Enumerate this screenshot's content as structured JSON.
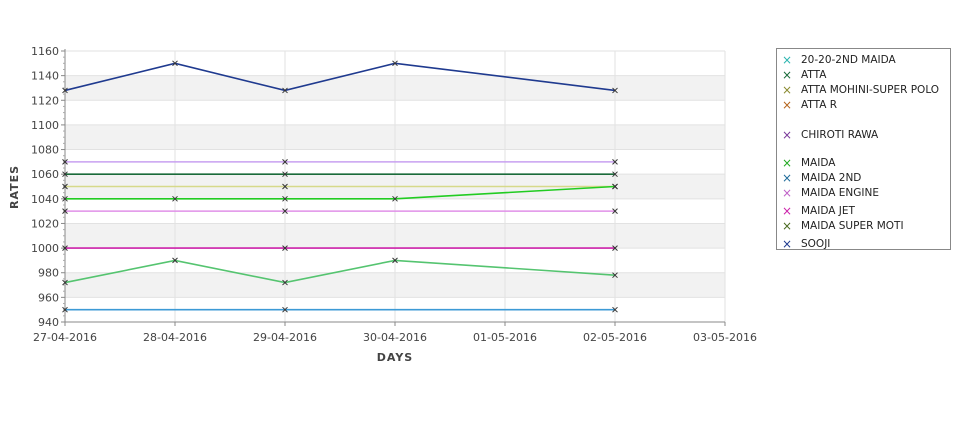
{
  "chart_data": {
    "type": "line",
    "title": "",
    "xlabel": "DAYS",
    "ylabel": "RATES",
    "x_ticks": [
      "27-04-2016",
      "28-04-2016",
      "29-04-2016",
      "30-04-2016",
      "01-05-2016",
      "02-05-2016",
      "03-05-2016"
    ],
    "xlim": [
      "27-04-2016",
      "03-05-2016"
    ],
    "ylim": [
      940,
      1160
    ],
    "y_ticks": [
      940,
      960,
      980,
      1000,
      1020,
      1040,
      1060,
      1080,
      1100,
      1120,
      1140,
      1160
    ],
    "grid": true,
    "legend_position": "right",
    "series": [
      {
        "name": "20-20-2ND MAIDA",
        "color": "#2bb5b0",
        "x": [
          "27-04-2016",
          "28-04-2016",
          "29-04-2016",
          "30-04-2016",
          "02-05-2016"
        ],
        "y": [
          null,
          null,
          null,
          null,
          null
        ]
      },
      {
        "name": "ATTA",
        "color": "#1a6b3a",
        "x": [
          "27-04-2016",
          "29-04-2016",
          "02-05-2016"
        ],
        "y": [
          1060,
          1060,
          1060
        ]
      },
      {
        "name": "ATTA MOHINI-SUPER POLO",
        "color": "#d6d98a",
        "x": [
          "27-04-2016",
          "29-04-2016",
          "02-05-2016"
        ],
        "y": [
          1050,
          1050,
          1050
        ]
      },
      {
        "name": "ATTA R",
        "color": "#b5651d",
        "x": [],
        "y": []
      },
      {
        "name": "CHIROTI RAWA",
        "color": "#c8a0f0",
        "x": [
          "27-04-2016",
          "29-04-2016",
          "02-05-2016"
        ],
        "y": [
          1070,
          1070,
          1070
        ]
      },
      {
        "name": "MAIDA",
        "color": "#22cc22",
        "x": [
          "27-04-2016",
          "28-04-2016",
          "29-04-2016",
          "30-04-2016",
          "02-05-2016"
        ],
        "y": [
          1040,
          1040,
          1040,
          1040,
          1050
        ]
      },
      {
        "name": "MAIDA 2ND",
        "color": "#3c9ad6",
        "x": [
          "27-04-2016",
          "29-04-2016",
          "02-05-2016"
        ],
        "y": [
          950,
          950,
          950
        ]
      },
      {
        "name": "MAIDA ENGINE",
        "color": "#e090e8",
        "x": [
          "27-04-2016",
          "29-04-2016",
          "02-05-2016"
        ],
        "y": [
          1030,
          1030,
          1030
        ]
      },
      {
        "name": "MAIDA JET",
        "color": "#cc22aa",
        "x": [
          "27-04-2016",
          "29-04-2016",
          "02-05-2016"
        ],
        "y": [
          1000,
          1000,
          1000
        ]
      },
      {
        "name": "MAIDA SUPER MOTI",
        "color": "#55c470",
        "x": [
          "27-04-2016",
          "28-04-2016",
          "29-04-2016",
          "30-04-2016",
          "02-05-2016"
        ],
        "y": [
          972,
          990,
          972,
          990,
          978
        ]
      },
      {
        "name": "SOOJI",
        "color": "#1f3a8f",
        "x": [
          "27-04-2016",
          "28-04-2016",
          "29-04-2016",
          "30-04-2016",
          "02-05-2016"
        ],
        "y": [
          1128,
          1150,
          1128,
          1150,
          1128
        ]
      }
    ]
  },
  "legend": [
    {
      "name": "20-20-2ND MAIDA",
      "icon": "x-marker-icon",
      "color": "#2bb5b0"
    },
    {
      "name": "ATTA",
      "icon": "x-marker-icon",
      "color": "#1a6b3a"
    },
    {
      "name": "ATTA MOHINI-SUPER POLO",
      "icon": "x-marker-icon",
      "color": "#8a8a30"
    },
    {
      "name": "ATTA R",
      "icon": "x-marker-icon",
      "color": "#b5651d"
    },
    {
      "name": "CHIROTI RAWA",
      "icon": "x-marker-icon",
      "color": "#7a3a9a"
    },
    {
      "name": "MAIDA",
      "icon": "x-marker-icon",
      "color": "#22aa22"
    },
    {
      "name": "MAIDA 2ND",
      "icon": "x-marker-icon",
      "color": "#1f6b9a"
    },
    {
      "name": "MAIDA ENGINE",
      "icon": "x-marker-icon",
      "color": "#c060c8"
    },
    {
      "name": "MAIDA JET",
      "icon": "x-marker-icon",
      "color": "#cc22aa"
    },
    {
      "name": "MAIDA SUPER MOTI",
      "icon": "x-marker-icon",
      "color": "#4a6a20"
    },
    {
      "name": "SOOJI",
      "icon": "x-marker-icon",
      "color": "#1f3a8f"
    }
  ]
}
